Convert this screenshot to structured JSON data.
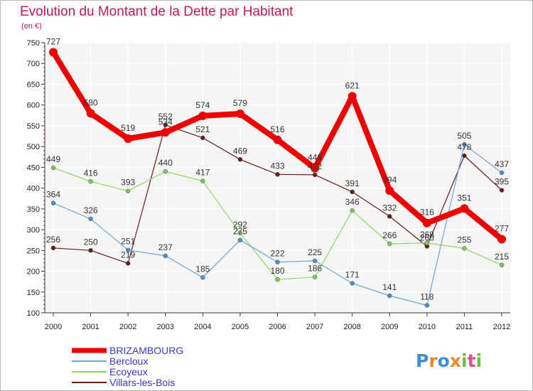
{
  "chart_data": {
    "type": "line",
    "title": "Evolution du Montant de la Dette par Habitant",
    "subtitle": "(en €)",
    "x": [
      "2000",
      "2001",
      "2002",
      "2003",
      "2004",
      "2005",
      "2006",
      "2007",
      "2008",
      "2009",
      "2010",
      "2011",
      "2012"
    ],
    "ylim": [
      100,
      750
    ],
    "yticks": [
      100,
      150,
      200,
      250,
      300,
      350,
      400,
      450,
      500,
      550,
      600,
      650,
      700,
      750
    ],
    "grid": true,
    "legend_position": "bottom-left",
    "series": [
      {
        "name": "Villars-les-Bois",
        "color": "#6b1a1a",
        "width": 1.2,
        "marker": "#6b1a1a",
        "values": [
          256,
          250,
          219,
          552,
          521,
          469,
          433,
          432,
          391,
          332,
          260,
          478,
          395
        ],
        "labels": [
          "256",
          "250",
          "219",
          "552",
          "521",
          "469",
          "433",
          "432",
          "391",
          "332",
          "260",
          "478",
          "395"
        ]
      },
      {
        "name": "Ecoyeux",
        "color": "#8fd66a",
        "width": 1.2,
        "marker": "#7cc85a",
        "values": [
          449,
          416,
          393,
          440,
          417,
          292,
          180,
          186,
          346,
          266,
          268,
          255,
          215
        ],
        "labels": [
          "449",
          "416",
          "393",
          "440",
          "417",
          "292",
          "180",
          "186",
          "346",
          "266",
          "268",
          "255",
          "215"
        ]
      },
      {
        "name": "Bercloux",
        "color": "#6aa6d6",
        "width": 1.2,
        "marker": "#4b8fd0",
        "values": [
          364,
          326,
          251,
          237,
          185,
          275,
          222,
          225,
          171,
          141,
          118,
          505,
          437
        ],
        "labels": [
          "364",
          "326",
          "251",
          "237",
          "185",
          "275",
          "222",
          "225",
          "171",
          "141",
          "118",
          "505",
          "437"
        ]
      },
      {
        "name": "BRIZAMBOURG",
        "color": "#ee0000",
        "width": 8,
        "marker": "#ee0000",
        "values": [
          727,
          580,
          519,
          534,
          574,
          579,
          516,
          448,
          621,
          394,
          316,
          351,
          277
        ],
        "labels": [
          "727",
          "580",
          "519",
          "534",
          "574",
          "579",
          "516",
          "448",
          "621",
          "394",
          "316",
          "351",
          "277"
        ]
      }
    ]
  },
  "logo": {
    "letters": [
      "P",
      "r",
      "o",
      "x",
      "i",
      "t",
      "i"
    ],
    "colors": [
      "#3b8fd8",
      "#e8892a",
      "#3b8fd8",
      "#e8892a",
      "#6cc04a",
      "#e84a8a",
      "#6cc04a"
    ]
  }
}
